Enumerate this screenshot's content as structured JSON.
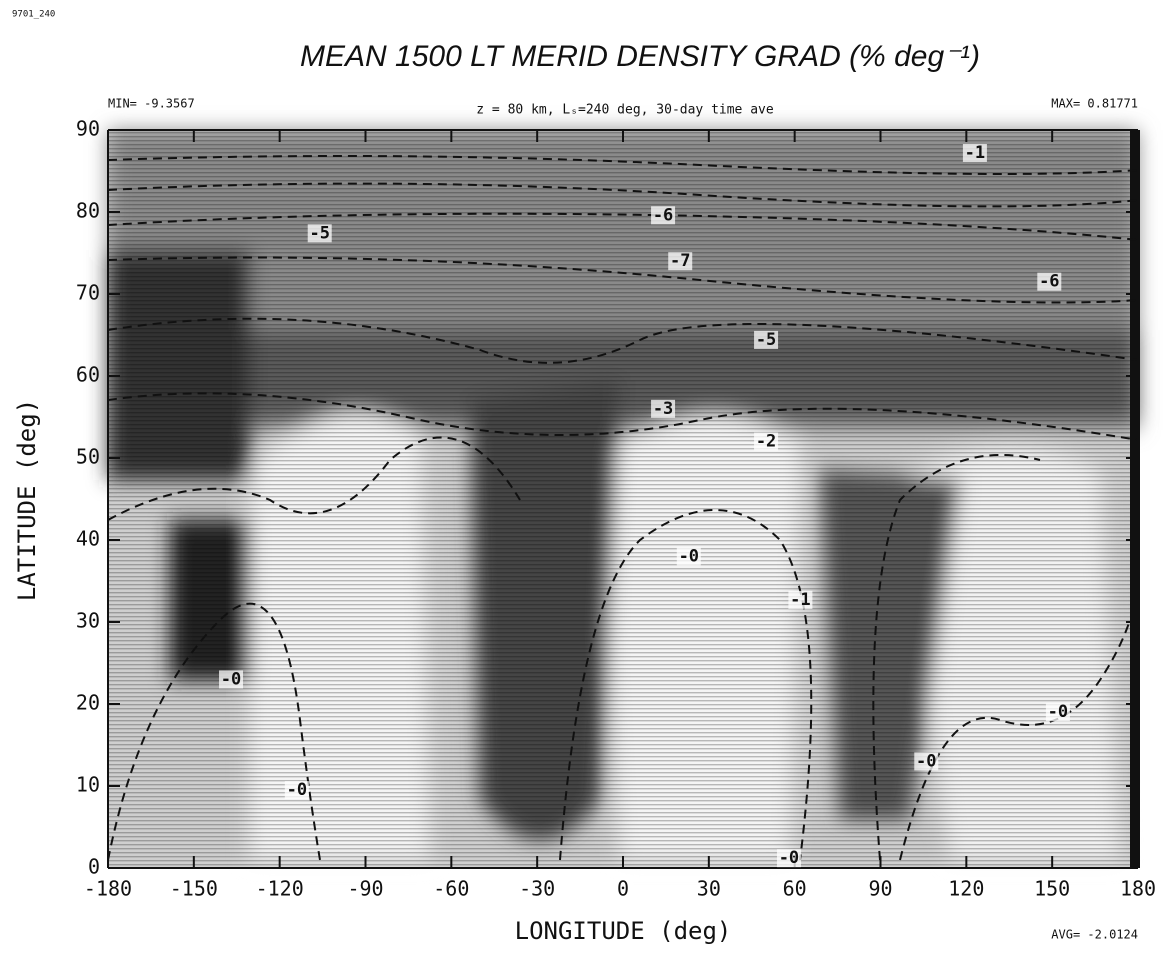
{
  "chart_data": {
    "type": "contour",
    "file_id": "9701_240",
    "title": "MEAN 1500 LT MERID DENSITY GRAD (% deg⁻¹)",
    "subtitle": "z = 80 km, Lₛ=240 deg, 30-day time ave",
    "min_label": "MIN= -9.3567",
    "max_label": "MAX= 0.81771",
    "avg_label": "AVG= -2.0124",
    "xlabel": "LONGITUDE (deg)",
    "ylabel": "LATITUDE (deg)",
    "xlim": [
      -180,
      180
    ],
    "xticks": [
      -180,
      -150,
      -120,
      -90,
      -60,
      -30,
      0,
      30,
      60,
      90,
      120,
      150,
      180
    ],
    "ylim": [
      0,
      90
    ],
    "yticks": [
      0,
      10,
      20,
      30,
      40,
      50,
      60,
      70,
      80,
      90
    ],
    "contour_labels": [
      {
        "value": -1,
        "label": "-1",
        "x": 123,
        "y": 87.2
      },
      {
        "value": -6,
        "label": "-6",
        "x": 14,
        "y": 79.6
      },
      {
        "value": -5,
        "label": "-5",
        "x": -106,
        "y": 77.4
      },
      {
        "value": -7,
        "label": "-7",
        "x": 20,
        "y": 74
      },
      {
        "value": -6,
        "label": "-6",
        "x": 149,
        "y": 71.5
      },
      {
        "value": -5,
        "label": "-5",
        "x": 50,
        "y": 64.4
      },
      {
        "value": -3,
        "label": "-3",
        "x": 14,
        "y": 56
      },
      {
        "value": -2,
        "label": "-2",
        "x": 50,
        "y": 52
      },
      {
        "value": 0,
        "label": "-0",
        "x": 23,
        "y": 38
      },
      {
        "value": -1,
        "label": "-1",
        "x": 62,
        "y": 32.7
      },
      {
        "value": 0,
        "label": "-0",
        "x": -137,
        "y": 23
      },
      {
        "value": 0,
        "label": "-0",
        "x": -114,
        "y": 9.5
      },
      {
        "value": 0,
        "label": "-0",
        "x": 152,
        "y": 19
      },
      {
        "value": 0,
        "label": "-0",
        "x": 106,
        "y": 13
      },
      {
        "value": 0,
        "label": "-0",
        "x": 58,
        "y": 1.2
      }
    ]
  }
}
